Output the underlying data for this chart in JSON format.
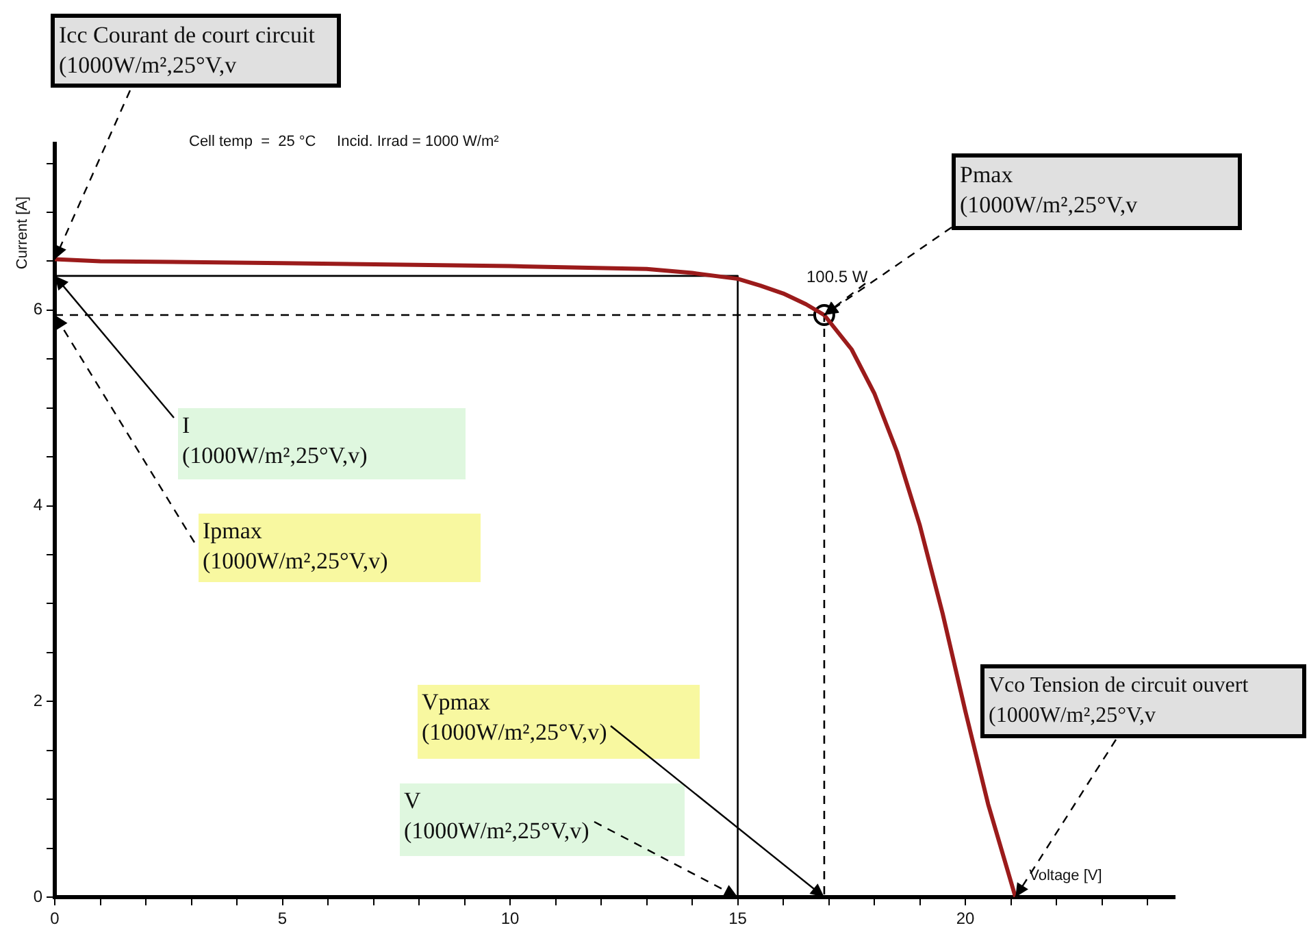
{
  "chart_data": {
    "type": "line",
    "title": "Cell temp  =  25 °C     Incid. Irrad = 1000 W/m²",
    "xlabel": "Voltage [V]",
    "ylabel": "Current [A]",
    "xlim": [
      0,
      24.6
    ],
    "ylim": [
      0,
      7.7
    ],
    "xticks": [
      0,
      {
        "value": 1,
        "label": null
      },
      {
        "value": 2,
        "label": null
      },
      {
        "value": 3,
        "label": null
      },
      {
        "value": 4,
        "label": null
      },
      5,
      {
        "value": 6,
        "label": null
      },
      {
        "value": 7,
        "label": null
      },
      {
        "value": 8,
        "label": null
      },
      {
        "value": 9,
        "label": null
      },
      10,
      {
        "value": 11,
        "label": null
      },
      {
        "value": 12,
        "label": null
      },
      {
        "value": 13,
        "label": null
      },
      {
        "value": 14,
        "label": null
      },
      15,
      {
        "value": 16,
        "label": null
      },
      {
        "value": 17,
        "label": null
      },
      {
        "value": 18,
        "label": null
      },
      {
        "value": 19,
        "label": null
      },
      20,
      {
        "value": 21,
        "label": null
      },
      {
        "value": 22,
        "label": null
      },
      {
        "value": 23,
        "label": null
      },
      {
        "value": 24,
        "label": null
      }
    ],
    "yticks": [
      0,
      {
        "value": 0.5,
        "label": null
      },
      {
        "value": 1,
        "label": null
      },
      {
        "value": 1.5,
        "label": null
      },
      2,
      {
        "value": 2.5,
        "label": null
      },
      {
        "value": 3,
        "label": null
      },
      {
        "value": 3.5,
        "label": null
      },
      4,
      {
        "value": 4.5,
        "label": null
      },
      {
        "value": 5,
        "label": null
      },
      {
        "value": 5.5,
        "label": null
      },
      6,
      {
        "value": 6.5,
        "label": null
      },
      {
        "value": 7,
        "label": null
      },
      {
        "value": 7.5,
        "label": null
      }
    ],
    "grid": false,
    "legend": false,
    "series": [
      {
        "color": "#9b1b1b",
        "marker": "none",
        "line_style": "solid",
        "x": [
          0,
          1,
          5,
          10,
          13,
          14,
          15,
          15.5,
          16,
          16.5,
          16.9,
          17.5,
          18,
          18.5,
          19,
          19.5,
          20,
          20.5,
          21.1
        ],
        "values": [
          6.52,
          6.5,
          6.48,
          6.45,
          6.42,
          6.38,
          6.32,
          6.25,
          6.17,
          6.06,
          5.95,
          5.6,
          5.15,
          4.55,
          3.8,
          2.9,
          1.9,
          0.95,
          0
        ]
      },
      {
        "color": "#000000",
        "marker": "none",
        "line_style": "solid",
        "x": [
          0,
          15,
          15
        ],
        "values": [
          6.35,
          6.35,
          0
        ]
      },
      {
        "color": "#000000",
        "marker": "none",
        "line_style": "dashed",
        "x": [
          0,
          16.9,
          16.9
        ],
        "values": [
          5.95,
          5.95,
          0
        ]
      },
      {
        "type": "scatter",
        "color": "#000000",
        "marker": "circle",
        "x": [
          16.9
        ],
        "values": [
          5.95
        ]
      }
    ],
    "annotations": [
      {
        "text": "Icc Courant de court circuit\n(1000W/m²,25°V,v",
        "x": 0,
        "y": 6.52
      },
      {
        "text": "Pmax\n(1000W/m²,25°V,v",
        "x": 16.9,
        "y": 5.95
      },
      {
        "text": "I\n(1000W/m²,25°V,v)",
        "x": 0,
        "y": 6.35
      },
      {
        "text": "Ipmax\n(1000W/m²,25°V,v)",
        "x": 0,
        "y": 5.95
      },
      {
        "text": "Vpmax\n(1000W/m²,25°V,v)",
        "x": 16.9,
        "y": 0
      },
      {
        "text": "V\n(1000W/m²,25°V,v)",
        "x": 15,
        "y": 0
      },
      {
        "text": "Vco Tension de circuit ouvert\n(1000W/m²,25°V,v",
        "x": 21.1,
        "y": 0
      },
      {
        "text": "100.5 W",
        "x": 16.9,
        "y": 5.95
      }
    ]
  }
}
